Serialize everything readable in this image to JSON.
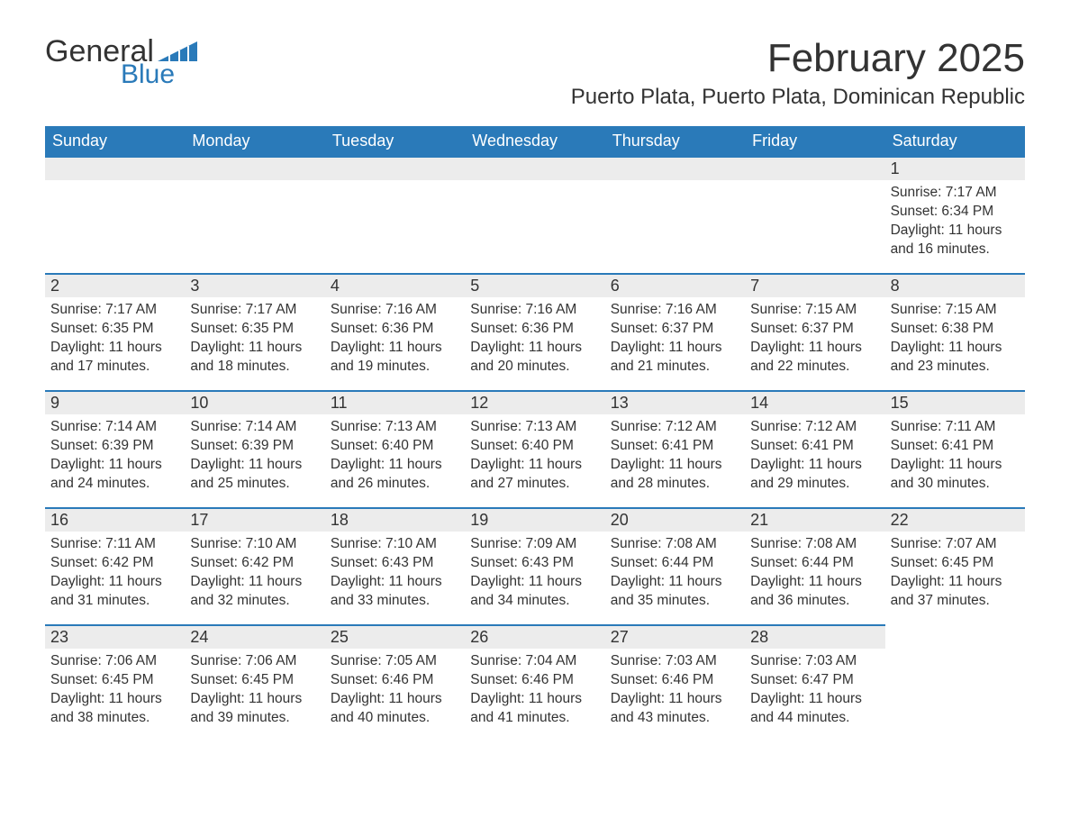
{
  "logo": {
    "general": "General",
    "blue": "Blue"
  },
  "title": "February 2025",
  "location": "Puerto Plata, Puerto Plata, Dominican Republic",
  "colors": {
    "header_bg": "#2a7ab9",
    "header_text": "#ffffff",
    "daynum_bg": "#ececec",
    "daynum_border": "#2a7ab9",
    "body_text": "#333333",
    "logo_blue": "#2a7ab9",
    "page_bg": "#ffffff"
  },
  "weekdays": [
    "Sunday",
    "Monday",
    "Tuesday",
    "Wednesday",
    "Thursday",
    "Friday",
    "Saturday"
  ],
  "weeks": [
    [
      {
        "empty": true
      },
      {
        "empty": true
      },
      {
        "empty": true
      },
      {
        "empty": true
      },
      {
        "empty": true
      },
      {
        "empty": true
      },
      {
        "day": "1",
        "sunrise": "Sunrise: 7:17 AM",
        "sunset": "Sunset: 6:34 PM",
        "daylight1": "Daylight: 11 hours",
        "daylight2": "and 16 minutes."
      }
    ],
    [
      {
        "day": "2",
        "sunrise": "Sunrise: 7:17 AM",
        "sunset": "Sunset: 6:35 PM",
        "daylight1": "Daylight: 11 hours",
        "daylight2": "and 17 minutes."
      },
      {
        "day": "3",
        "sunrise": "Sunrise: 7:17 AM",
        "sunset": "Sunset: 6:35 PM",
        "daylight1": "Daylight: 11 hours",
        "daylight2": "and 18 minutes."
      },
      {
        "day": "4",
        "sunrise": "Sunrise: 7:16 AM",
        "sunset": "Sunset: 6:36 PM",
        "daylight1": "Daylight: 11 hours",
        "daylight2": "and 19 minutes."
      },
      {
        "day": "5",
        "sunrise": "Sunrise: 7:16 AM",
        "sunset": "Sunset: 6:36 PM",
        "daylight1": "Daylight: 11 hours",
        "daylight2": "and 20 minutes."
      },
      {
        "day": "6",
        "sunrise": "Sunrise: 7:16 AM",
        "sunset": "Sunset: 6:37 PM",
        "daylight1": "Daylight: 11 hours",
        "daylight2": "and 21 minutes."
      },
      {
        "day": "7",
        "sunrise": "Sunrise: 7:15 AM",
        "sunset": "Sunset: 6:37 PM",
        "daylight1": "Daylight: 11 hours",
        "daylight2": "and 22 minutes."
      },
      {
        "day": "8",
        "sunrise": "Sunrise: 7:15 AM",
        "sunset": "Sunset: 6:38 PM",
        "daylight1": "Daylight: 11 hours",
        "daylight2": "and 23 minutes."
      }
    ],
    [
      {
        "day": "9",
        "sunrise": "Sunrise: 7:14 AM",
        "sunset": "Sunset: 6:39 PM",
        "daylight1": "Daylight: 11 hours",
        "daylight2": "and 24 minutes."
      },
      {
        "day": "10",
        "sunrise": "Sunrise: 7:14 AM",
        "sunset": "Sunset: 6:39 PM",
        "daylight1": "Daylight: 11 hours",
        "daylight2": "and 25 minutes."
      },
      {
        "day": "11",
        "sunrise": "Sunrise: 7:13 AM",
        "sunset": "Sunset: 6:40 PM",
        "daylight1": "Daylight: 11 hours",
        "daylight2": "and 26 minutes."
      },
      {
        "day": "12",
        "sunrise": "Sunrise: 7:13 AM",
        "sunset": "Sunset: 6:40 PM",
        "daylight1": "Daylight: 11 hours",
        "daylight2": "and 27 minutes."
      },
      {
        "day": "13",
        "sunrise": "Sunrise: 7:12 AM",
        "sunset": "Sunset: 6:41 PM",
        "daylight1": "Daylight: 11 hours",
        "daylight2": "and 28 minutes."
      },
      {
        "day": "14",
        "sunrise": "Sunrise: 7:12 AM",
        "sunset": "Sunset: 6:41 PM",
        "daylight1": "Daylight: 11 hours",
        "daylight2": "and 29 minutes."
      },
      {
        "day": "15",
        "sunrise": "Sunrise: 7:11 AM",
        "sunset": "Sunset: 6:41 PM",
        "daylight1": "Daylight: 11 hours",
        "daylight2": "and 30 minutes."
      }
    ],
    [
      {
        "day": "16",
        "sunrise": "Sunrise: 7:11 AM",
        "sunset": "Sunset: 6:42 PM",
        "daylight1": "Daylight: 11 hours",
        "daylight2": "and 31 minutes."
      },
      {
        "day": "17",
        "sunrise": "Sunrise: 7:10 AM",
        "sunset": "Sunset: 6:42 PM",
        "daylight1": "Daylight: 11 hours",
        "daylight2": "and 32 minutes."
      },
      {
        "day": "18",
        "sunrise": "Sunrise: 7:10 AM",
        "sunset": "Sunset: 6:43 PM",
        "daylight1": "Daylight: 11 hours",
        "daylight2": "and 33 minutes."
      },
      {
        "day": "19",
        "sunrise": "Sunrise: 7:09 AM",
        "sunset": "Sunset: 6:43 PM",
        "daylight1": "Daylight: 11 hours",
        "daylight2": "and 34 minutes."
      },
      {
        "day": "20",
        "sunrise": "Sunrise: 7:08 AM",
        "sunset": "Sunset: 6:44 PM",
        "daylight1": "Daylight: 11 hours",
        "daylight2": "and 35 minutes."
      },
      {
        "day": "21",
        "sunrise": "Sunrise: 7:08 AM",
        "sunset": "Sunset: 6:44 PM",
        "daylight1": "Daylight: 11 hours",
        "daylight2": "and 36 minutes."
      },
      {
        "day": "22",
        "sunrise": "Sunrise: 7:07 AM",
        "sunset": "Sunset: 6:45 PM",
        "daylight1": "Daylight: 11 hours",
        "daylight2": "and 37 minutes."
      }
    ],
    [
      {
        "day": "23",
        "sunrise": "Sunrise: 7:06 AM",
        "sunset": "Sunset: 6:45 PM",
        "daylight1": "Daylight: 11 hours",
        "daylight2": "and 38 minutes."
      },
      {
        "day": "24",
        "sunrise": "Sunrise: 7:06 AM",
        "sunset": "Sunset: 6:45 PM",
        "daylight1": "Daylight: 11 hours",
        "daylight2": "and 39 minutes."
      },
      {
        "day": "25",
        "sunrise": "Sunrise: 7:05 AM",
        "sunset": "Sunset: 6:46 PM",
        "daylight1": "Daylight: 11 hours",
        "daylight2": "and 40 minutes."
      },
      {
        "day": "26",
        "sunrise": "Sunrise: 7:04 AM",
        "sunset": "Sunset: 6:46 PM",
        "daylight1": "Daylight: 11 hours",
        "daylight2": "and 41 minutes."
      },
      {
        "day": "27",
        "sunrise": "Sunrise: 7:03 AM",
        "sunset": "Sunset: 6:46 PM",
        "daylight1": "Daylight: 11 hours",
        "daylight2": "and 43 minutes."
      },
      {
        "day": "28",
        "sunrise": "Sunrise: 7:03 AM",
        "sunset": "Sunset: 6:47 PM",
        "daylight1": "Daylight: 11 hours",
        "daylight2": "and 44 minutes."
      },
      {
        "empty": true,
        "noBar": true
      }
    ]
  ]
}
